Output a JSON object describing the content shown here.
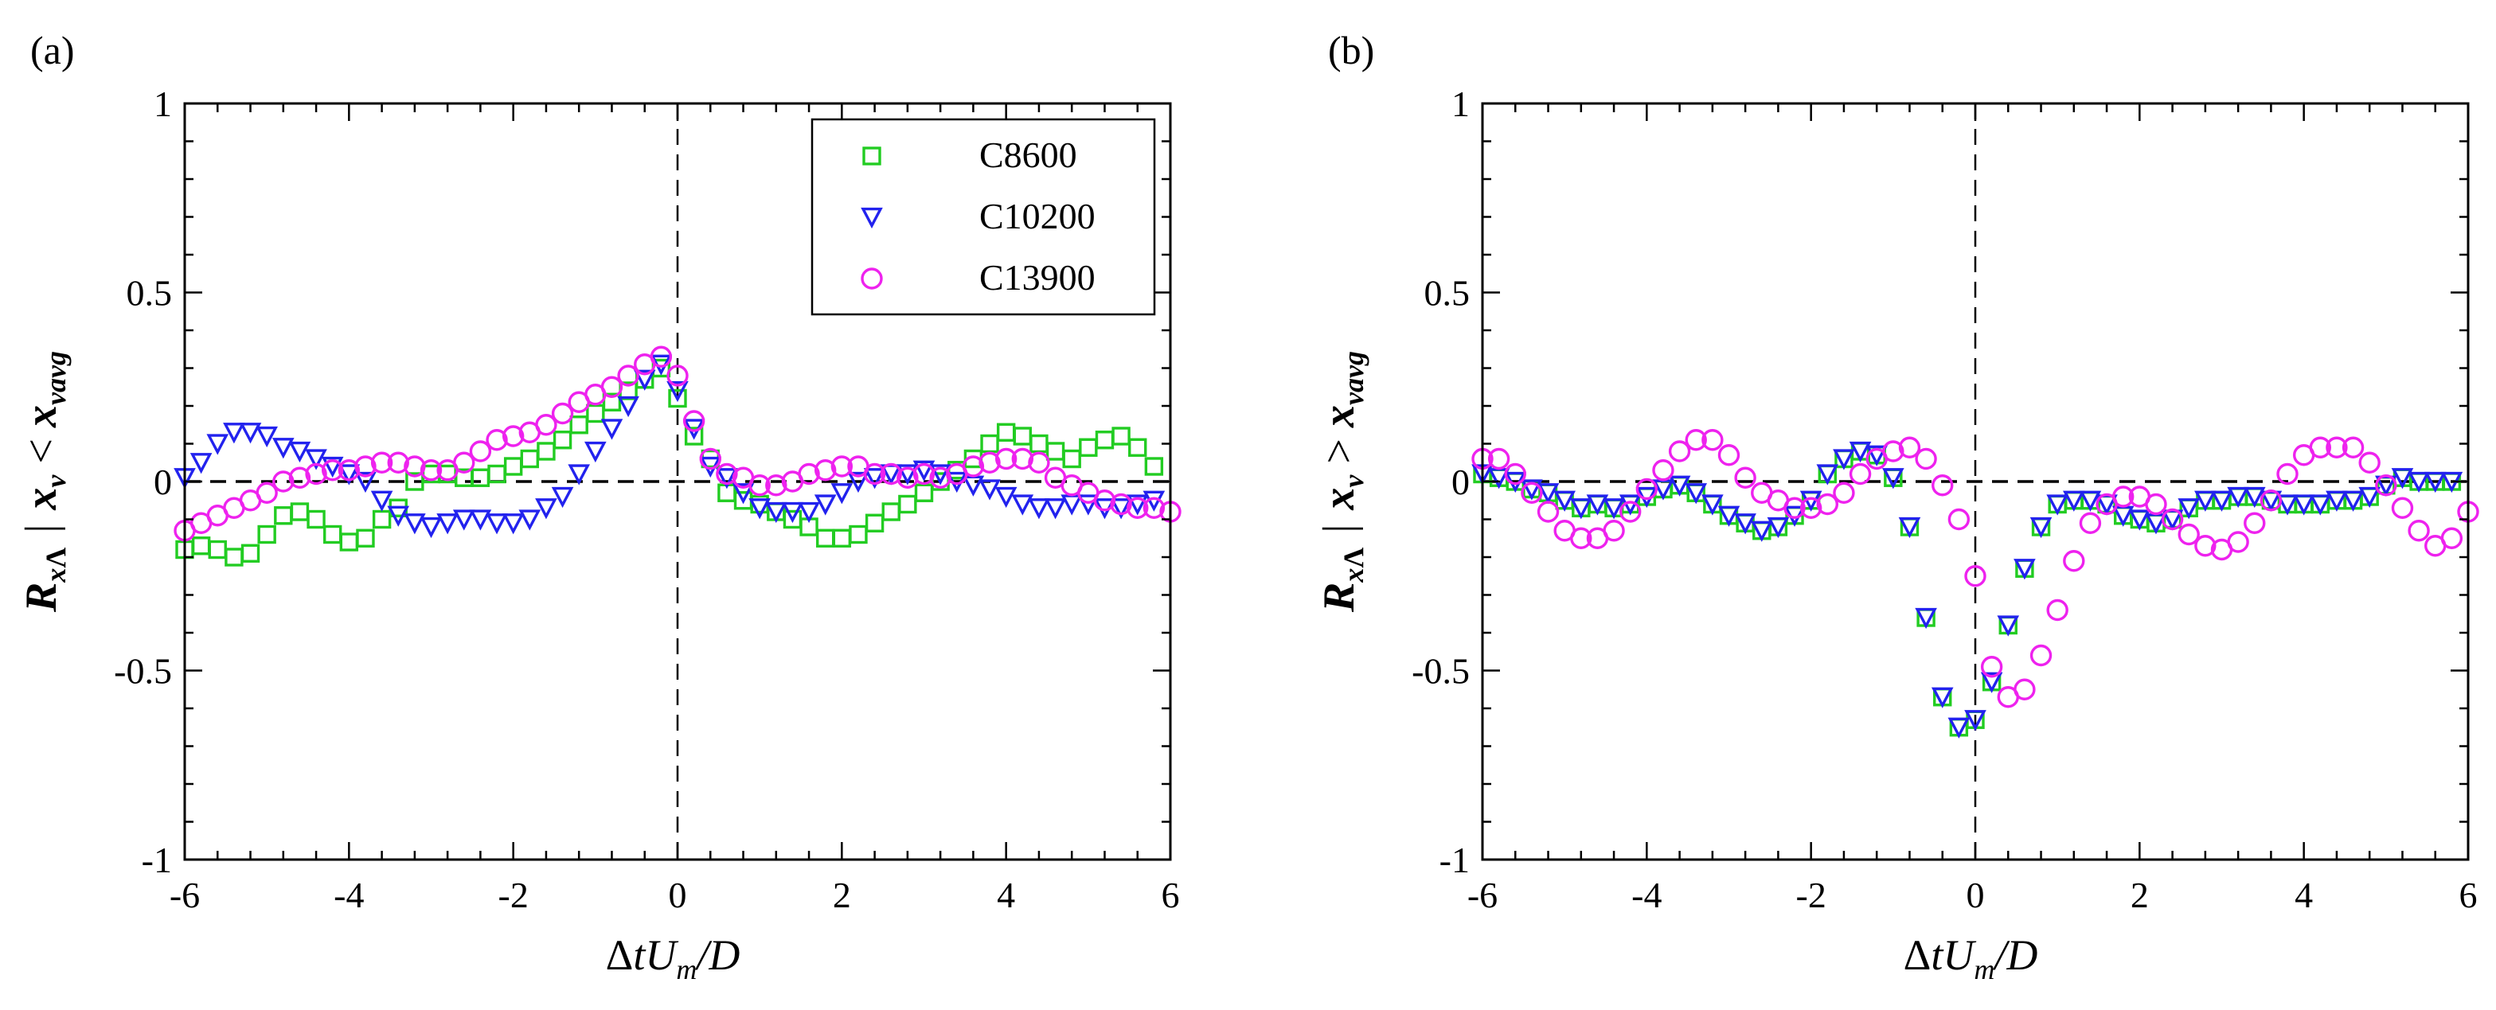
{
  "chart_data": [
    {
      "type": "scatter",
      "panel_label": "(a)",
      "xlabel": {
        "delta": "Δ",
        "t": "t",
        "U": "U",
        "sub_m": "m",
        "tail": "/D"
      },
      "ylabel": {
        "R": "R",
        "sub_x": "x",
        "sub_lambda": "Λ",
        "bar": "|",
        "xv": "x",
        "sub_v": "v",
        "op": "<",
        "xavg": "x",
        "sub_vavg": "vavg"
      },
      "xlim": [
        -6,
        6
      ],
      "ylim": [
        -1,
        1
      ],
      "xticks": [
        -6,
        -4,
        -2,
        0,
        2,
        4,
        6
      ],
      "yticks": [
        -1,
        -0.5,
        0,
        0.5,
        1
      ],
      "xtick_labels": [
        "-6",
        "-4",
        "-2",
        "0",
        "2",
        "4",
        "6"
      ],
      "ytick_labels": [
        "-1",
        "-0.5",
        "0",
        "0.5",
        "1"
      ],
      "legend": {
        "show": true,
        "position": "top-right",
        "entries": [
          "C8600",
          "C10200",
          "C13900"
        ]
      },
      "reference_lines": {
        "horizontal_dashed_y": 0,
        "vertical_dashed_x": 0
      },
      "series": [
        {
          "name": "C8600",
          "marker": "square",
          "color": "#22cc22",
          "x": [
            -6.0,
            -5.8,
            -5.6,
            -5.4,
            -5.2,
            -5.0,
            -4.8,
            -4.6,
            -4.4,
            -4.2,
            -4.0,
            -3.8,
            -3.6,
            -3.4,
            -3.2,
            -3.0,
            -2.8,
            -2.6,
            -2.4,
            -2.2,
            -2.0,
            -1.8,
            -1.6,
            -1.4,
            -1.2,
            -1.0,
            -0.8,
            -0.6,
            -0.4,
            -0.2,
            0.0,
            0.2,
            0.4,
            0.6,
            0.8,
            1.0,
            1.2,
            1.4,
            1.6,
            1.8,
            2.0,
            2.2,
            2.4,
            2.6,
            2.8,
            3.0,
            3.2,
            3.4,
            3.6,
            3.8,
            4.0,
            4.2,
            4.4,
            4.6,
            4.8,
            5.0,
            5.2,
            5.4,
            5.6,
            5.8
          ],
          "y": [
            -0.18,
            -0.17,
            -0.18,
            -0.2,
            -0.19,
            -0.14,
            -0.09,
            -0.08,
            -0.1,
            -0.14,
            -0.16,
            -0.15,
            -0.1,
            -0.07,
            0.0,
            0.02,
            0.02,
            0.01,
            0.01,
            0.02,
            0.04,
            0.06,
            0.08,
            0.11,
            0.15,
            0.18,
            0.21,
            0.24,
            0.27,
            0.3,
            0.22,
            0.12,
            0.06,
            -0.03,
            -0.05,
            -0.06,
            -0.08,
            -0.1,
            -0.12,
            -0.15,
            -0.15,
            -0.14,
            -0.11,
            -0.08,
            -0.06,
            -0.03,
            0.0,
            0.03,
            0.06,
            0.1,
            0.13,
            0.12,
            0.1,
            0.08,
            0.06,
            0.09,
            0.11,
            0.12,
            0.09,
            0.04
          ]
        },
        {
          "name": "C10200",
          "marker": "triangle-down",
          "color": "#2222ee",
          "x": [
            -6.0,
            -5.8,
            -5.6,
            -5.4,
            -5.2,
            -5.0,
            -4.8,
            -4.6,
            -4.4,
            -4.2,
            -4.0,
            -3.8,
            -3.6,
            -3.4,
            -3.2,
            -3.0,
            -2.8,
            -2.6,
            -2.4,
            -2.2,
            -2.0,
            -1.8,
            -1.6,
            -1.4,
            -1.2,
            -1.0,
            -0.8,
            -0.6,
            -0.4,
            -0.2,
            0.0,
            0.2,
            0.4,
            0.6,
            0.8,
            1.0,
            1.2,
            1.4,
            1.6,
            1.8,
            2.0,
            2.2,
            2.4,
            2.6,
            2.8,
            3.0,
            3.2,
            3.4,
            3.6,
            3.8,
            4.0,
            4.2,
            4.4,
            4.6,
            4.8,
            5.0,
            5.2,
            5.4,
            5.6,
            5.8
          ],
          "y": [
            0.01,
            0.05,
            0.1,
            0.13,
            0.13,
            0.12,
            0.09,
            0.08,
            0.06,
            0.04,
            0.02,
            0.0,
            -0.05,
            -0.09,
            -0.11,
            -0.12,
            -0.11,
            -0.1,
            -0.1,
            -0.11,
            -0.11,
            -0.1,
            -0.07,
            -0.04,
            0.02,
            0.08,
            0.14,
            0.2,
            0.27,
            0.31,
            0.24,
            0.14,
            0.04,
            0.01,
            -0.03,
            -0.07,
            -0.08,
            -0.08,
            -0.08,
            -0.06,
            -0.03,
            0.0,
            0.01,
            0.02,
            0.02,
            0.03,
            0.02,
            0.0,
            -0.01,
            -0.02,
            -0.04,
            -0.06,
            -0.07,
            -0.07,
            -0.06,
            -0.06,
            -0.07,
            -0.07,
            -0.06,
            -0.05
          ]
        },
        {
          "name": "C13900",
          "marker": "circle",
          "color": "#ee22ee",
          "x": [
            -6.0,
            -5.8,
            -5.6,
            -5.4,
            -5.2,
            -5.0,
            -4.8,
            -4.6,
            -4.4,
            -4.2,
            -4.0,
            -3.8,
            -3.6,
            -3.4,
            -3.2,
            -3.0,
            -2.8,
            -2.6,
            -2.4,
            -2.2,
            -2.0,
            -1.8,
            -1.6,
            -1.4,
            -1.2,
            -1.0,
            -0.8,
            -0.6,
            -0.4,
            -0.2,
            0.0,
            0.2,
            0.4,
            0.6,
            0.8,
            1.0,
            1.2,
            1.4,
            1.6,
            1.8,
            2.0,
            2.2,
            2.4,
            2.6,
            2.8,
            3.0,
            3.2,
            3.4,
            3.6,
            3.8,
            4.0,
            4.2,
            4.4,
            4.6,
            4.8,
            5.0,
            5.2,
            5.4,
            5.6,
            5.8,
            6.0
          ],
          "y": [
            -0.13,
            -0.11,
            -0.09,
            -0.07,
            -0.05,
            -0.03,
            0.0,
            0.01,
            0.02,
            0.03,
            0.03,
            0.04,
            0.05,
            0.05,
            0.04,
            0.03,
            0.03,
            0.05,
            0.08,
            0.11,
            0.12,
            0.13,
            0.15,
            0.18,
            0.21,
            0.23,
            0.25,
            0.28,
            0.31,
            0.33,
            0.28,
            0.16,
            0.06,
            0.02,
            0.01,
            -0.01,
            -0.01,
            0.0,
            0.02,
            0.03,
            0.04,
            0.04,
            0.02,
            0.02,
            0.01,
            0.02,
            0.01,
            0.02,
            0.04,
            0.05,
            0.06,
            0.06,
            0.05,
            0.01,
            -0.01,
            -0.03,
            -0.05,
            -0.06,
            -0.07,
            -0.07,
            -0.08
          ]
        }
      ]
    },
    {
      "type": "scatter",
      "panel_label": "(b)",
      "xlabel": {
        "delta": "Δ",
        "t": "t",
        "U": "U",
        "sub_m": "m",
        "tail": "/D"
      },
      "ylabel": {
        "R": "R",
        "sub_x": "x",
        "sub_lambda": "Λ",
        "bar": "|",
        "xv": "x",
        "sub_v": "v",
        "op": ">",
        "xavg": "x",
        "sub_vavg": "vavg"
      },
      "xlim": [
        -6,
        6
      ],
      "ylim": [
        -1,
        1
      ],
      "xticks": [
        -6,
        -4,
        -2,
        0,
        2,
        4,
        6
      ],
      "yticks": [
        -1,
        -0.5,
        0,
        0.5,
        1
      ],
      "xtick_labels": [
        "-6",
        "-4",
        "-2",
        "0",
        "2",
        "4",
        "6"
      ],
      "ytick_labels": [
        "-1",
        "-0.5",
        "0",
        "0.5",
        "1"
      ],
      "legend": {
        "show": false
      },
      "reference_lines": {
        "horizontal_dashed_y": 0,
        "vertical_dashed_x": 0
      },
      "series": [
        {
          "name": "C8600",
          "marker": "square",
          "color": "#22cc22",
          "x": [
            -6.0,
            -5.8,
            -5.6,
            -5.4,
            -5.2,
            -5.0,
            -4.8,
            -4.6,
            -4.4,
            -4.2,
            -4.0,
            -3.8,
            -3.6,
            -3.4,
            -3.2,
            -3.0,
            -2.8,
            -2.6,
            -2.4,
            -2.2,
            -2.0,
            -1.8,
            -1.6,
            -1.4,
            -1.2,
            -1.0,
            -0.8,
            -0.6,
            -0.4,
            -0.2,
            0.0,
            0.2,
            0.4,
            0.6,
            0.8,
            1.0,
            1.2,
            1.4,
            1.6,
            1.8,
            2.0,
            2.2,
            2.4,
            2.6,
            2.8,
            3.0,
            3.2,
            3.4,
            3.6,
            3.8,
            4.0,
            4.2,
            4.4,
            4.6,
            4.8,
            5.0,
            5.2,
            5.4,
            5.6,
            5.8
          ],
          "y": [
            0.02,
            0.01,
            0.0,
            -0.02,
            -0.03,
            -0.05,
            -0.07,
            -0.06,
            -0.07,
            -0.06,
            -0.04,
            -0.02,
            -0.01,
            -0.03,
            -0.06,
            -0.09,
            -0.11,
            -0.13,
            -0.12,
            -0.09,
            -0.05,
            0.02,
            0.06,
            0.08,
            0.07,
            0.01,
            -0.12,
            -0.36,
            -0.57,
            -0.65,
            -0.63,
            -0.53,
            -0.38,
            -0.23,
            -0.12,
            -0.06,
            -0.05,
            -0.05,
            -0.06,
            -0.09,
            -0.1,
            -0.11,
            -0.1,
            -0.07,
            -0.05,
            -0.05,
            -0.04,
            -0.04,
            -0.05,
            -0.06,
            -0.06,
            -0.06,
            -0.05,
            -0.05,
            -0.04,
            -0.01,
            0.01,
            0.0,
            0.0,
            0.0
          ]
        },
        {
          "name": "C10200",
          "marker": "triangle-down",
          "color": "#2222ee",
          "x": [
            -6.0,
            -5.8,
            -5.6,
            -5.4,
            -5.2,
            -5.0,
            -4.8,
            -4.6,
            -4.4,
            -4.2,
            -4.0,
            -3.8,
            -3.6,
            -3.4,
            -3.2,
            -3.0,
            -2.8,
            -2.6,
            -2.4,
            -2.2,
            -2.0,
            -1.8,
            -1.6,
            -1.4,
            -1.2,
            -1.0,
            -0.8,
            -0.6,
            -0.4,
            -0.2,
            0.0,
            0.2,
            0.4,
            0.6,
            0.8,
            1.0,
            1.2,
            1.4,
            1.6,
            1.8,
            2.0,
            2.2,
            2.4,
            2.6,
            2.8,
            3.0,
            3.2,
            3.4,
            3.6,
            3.8,
            4.0,
            4.2,
            4.4,
            4.6,
            4.8,
            5.0,
            5.2,
            5.4,
            5.6,
            5.8
          ],
          "y": [
            0.02,
            0.01,
            0.0,
            -0.02,
            -0.03,
            -0.05,
            -0.07,
            -0.06,
            -0.07,
            -0.06,
            -0.04,
            -0.02,
            -0.01,
            -0.03,
            -0.06,
            -0.09,
            -0.11,
            -0.13,
            -0.12,
            -0.09,
            -0.05,
            0.02,
            0.06,
            0.08,
            0.07,
            0.01,
            -0.12,
            -0.36,
            -0.57,
            -0.65,
            -0.63,
            -0.53,
            -0.38,
            -0.23,
            -0.12,
            -0.06,
            -0.05,
            -0.05,
            -0.06,
            -0.09,
            -0.1,
            -0.11,
            -0.1,
            -0.07,
            -0.05,
            -0.05,
            -0.04,
            -0.04,
            -0.05,
            -0.06,
            -0.06,
            -0.06,
            -0.05,
            -0.05,
            -0.04,
            -0.01,
            0.01,
            0.0,
            0.0,
            0.0
          ]
        },
        {
          "name": "C13900",
          "marker": "circle",
          "color": "#ee22ee",
          "x": [
            -6.0,
            -5.8,
            -5.6,
            -5.4,
            -5.2,
            -5.0,
            -4.8,
            -4.6,
            -4.4,
            -4.2,
            -4.0,
            -3.8,
            -3.6,
            -3.4,
            -3.2,
            -3.0,
            -2.8,
            -2.6,
            -2.4,
            -2.2,
            -2.0,
            -1.8,
            -1.6,
            -1.4,
            -1.2,
            -1.0,
            -0.8,
            -0.6,
            -0.4,
            -0.2,
            0.0,
            0.2,
            0.4,
            0.6,
            0.8,
            1.0,
            1.2,
            1.4,
            1.6,
            1.8,
            2.0,
            2.2,
            2.4,
            2.6,
            2.8,
            3.0,
            3.2,
            3.4,
            3.6,
            3.8,
            4.0,
            4.2,
            4.4,
            4.6,
            4.8,
            5.0,
            5.2,
            5.4,
            5.6,
            5.8,
            6.0
          ],
          "y": [
            0.06,
            0.06,
            0.02,
            -0.03,
            -0.08,
            -0.13,
            -0.15,
            -0.15,
            -0.13,
            -0.08,
            -0.02,
            0.03,
            0.08,
            0.11,
            0.11,
            0.07,
            0.01,
            -0.03,
            -0.05,
            -0.07,
            -0.07,
            -0.06,
            -0.03,
            0.02,
            0.06,
            0.08,
            0.09,
            0.06,
            -0.01,
            -0.1,
            -0.25,
            -0.49,
            -0.57,
            -0.55,
            -0.46,
            -0.34,
            -0.21,
            -0.11,
            -0.06,
            -0.04,
            -0.04,
            -0.06,
            -0.1,
            -0.14,
            -0.17,
            -0.18,
            -0.16,
            -0.11,
            -0.05,
            0.02,
            0.07,
            0.09,
            0.09,
            0.09,
            0.05,
            -0.01,
            -0.07,
            -0.13,
            -0.17,
            -0.15,
            -0.08
          ]
        }
      ]
    }
  ]
}
